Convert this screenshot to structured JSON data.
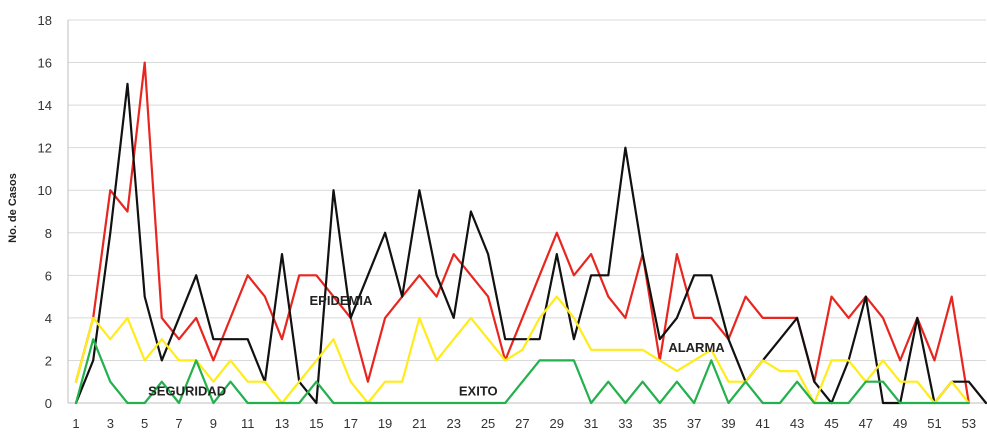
{
  "chart_data": {
    "type": "line",
    "title": "",
    "xlabel": "",
    "ylabel": "No. de Casos",
    "ylim": [
      0,
      18
    ],
    "xlim": [
      1,
      54
    ],
    "yticks": [
      0,
      2,
      4,
      6,
      8,
      10,
      12,
      14,
      16,
      18
    ],
    "xticks": [
      1,
      3,
      5,
      7,
      9,
      11,
      13,
      15,
      17,
      19,
      21,
      23,
      25,
      27,
      29,
      31,
      33,
      35,
      37,
      39,
      41,
      43,
      45,
      47,
      49,
      51,
      53
    ],
    "grid": "horizontal",
    "series": [
      {
        "name": "EPIDEMIA",
        "color": "#e8261f",
        "x": [
          1,
          2,
          3,
          4,
          5,
          6,
          7,
          8,
          9,
          10,
          11,
          12,
          13,
          14,
          15,
          16,
          17,
          18,
          19,
          20,
          21,
          22,
          23,
          24,
          25,
          26,
          27,
          28,
          29,
          30,
          31,
          32,
          33,
          34,
          35,
          36,
          37,
          38,
          39,
          40,
          41,
          42,
          43,
          44,
          45,
          46,
          47,
          48,
          49,
          50,
          51,
          52,
          53
        ],
        "values": [
          1,
          4,
          10,
          9,
          16,
          4,
          3,
          4,
          2,
          4,
          6,
          5,
          3,
          6,
          6,
          5,
          4,
          1,
          4,
          5,
          6,
          5,
          7,
          6,
          5,
          2,
          4,
          6,
          8,
          6,
          7,
          5,
          4,
          7,
          2,
          7,
          4,
          4,
          3,
          5,
          4,
          4,
          4,
          1,
          5,
          4,
          5,
          4,
          2,
          4,
          2,
          5,
          0
        ]
      },
      {
        "name": "",
        "color": "#111111",
        "x": [
          1,
          2,
          3,
          4,
          5,
          6,
          7,
          8,
          9,
          10,
          11,
          12,
          13,
          14,
          15,
          16,
          17,
          18,
          19,
          20,
          21,
          22,
          23,
          24,
          25,
          26,
          27,
          28,
          29,
          30,
          31,
          32,
          33,
          34,
          35,
          36,
          37,
          38,
          39,
          40,
          41,
          42,
          43,
          44,
          45,
          46,
          47,
          48,
          49,
          50,
          51,
          52,
          53,
          54
        ],
        "values": [
          0,
          2,
          8,
          15,
          5,
          2,
          4,
          6,
          3,
          3,
          3,
          1,
          7,
          1,
          0,
          10,
          4,
          6,
          8,
          5,
          10,
          6,
          4,
          9,
          7,
          3,
          3,
          3,
          7,
          3,
          6,
          6,
          12,
          7,
          3,
          4,
          6,
          6,
          3,
          1,
          2,
          3,
          4,
          1,
          0,
          2,
          5,
          0,
          0,
          4,
          0,
          1,
          1,
          0
        ]
      },
      {
        "name": "ALARMA",
        "color": "#ffec1a",
        "x": [
          1,
          2,
          3,
          4,
          5,
          6,
          7,
          8,
          9,
          10,
          11,
          12,
          13,
          14,
          15,
          16,
          17,
          18,
          19,
          20,
          21,
          22,
          23,
          24,
          25,
          26,
          27,
          28,
          29,
          30,
          31,
          32,
          33,
          34,
          35,
          36,
          37,
          38,
          39,
          40,
          41,
          42,
          43,
          44,
          45,
          46,
          47,
          48,
          49,
          50,
          51,
          52,
          53
        ],
        "values": [
          1,
          4,
          3,
          4,
          2,
          3,
          2,
          2,
          1,
          2,
          1,
          1,
          0,
          1,
          2,
          3,
          1,
          0,
          1,
          1,
          4,
          2,
          3,
          4,
          3,
          2,
          2.5,
          4,
          5,
          4,
          2.5,
          2.5,
          2.5,
          2.5,
          2,
          1.5,
          2,
          2.5,
          1,
          1,
          2,
          1.5,
          1.5,
          0,
          2,
          2,
          1,
          2,
          1,
          1,
          0,
          1,
          0
        ]
      },
      {
        "name": "SEGURIDAD",
        "color": "#22b14c",
        "x": [
          1,
          2,
          3,
          4,
          5,
          6,
          7,
          8,
          9,
          10,
          11,
          12,
          13,
          14,
          15,
          16,
          17,
          18,
          19,
          20,
          21,
          22,
          23,
          24,
          25,
          26,
          27,
          28,
          29,
          30,
          31,
          32,
          33,
          34,
          35,
          36,
          37,
          38,
          39,
          40,
          41,
          42,
          43,
          44,
          45,
          46,
          47,
          48,
          49,
          50,
          51,
          52,
          53
        ],
        "values": [
          0,
          3,
          1,
          0,
          0,
          1,
          0,
          2,
          0,
          1,
          0,
          0,
          0,
          0,
          1,
          0,
          0,
          0,
          0,
          0,
          0,
          0,
          0,
          0,
          0,
          0,
          1,
          2,
          2,
          2,
          0,
          1,
          0,
          1,
          0,
          1,
          0,
          2,
          0,
          1,
          0,
          0,
          1,
          0,
          0,
          0,
          1,
          1,
          0,
          0,
          0,
          0,
          0
        ]
      }
    ],
    "annotations": [
      {
        "text": "EPIDEMIA",
        "x": 14.6,
        "y": 4.6
      },
      {
        "text": "ALARMA",
        "x": 35.5,
        "y": 2.4
      },
      {
        "text": "SEGURIDAD",
        "x": 5.2,
        "y": 0.35
      },
      {
        "text": "EXITO",
        "x": 23.3,
        "y": 0.35
      }
    ]
  }
}
